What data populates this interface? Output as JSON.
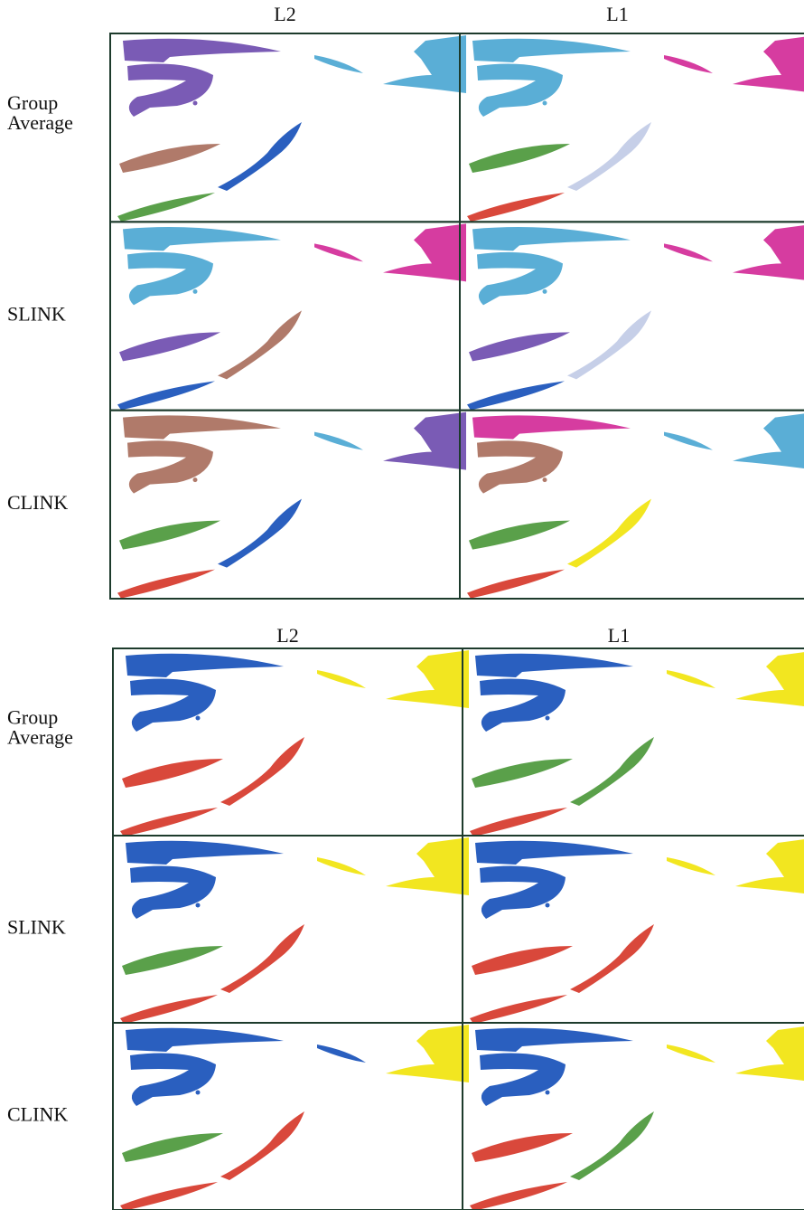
{
  "panels": [
    {
      "columns": [
        "L2",
        "L1"
      ],
      "rows": [
        [
          "Group",
          "Average"
        ],
        [
          "SLINK"
        ],
        [
          "CLINK"
        ]
      ]
    },
    {
      "columns": [
        "L2",
        "L1"
      ],
      "rows": [
        [
          "Group",
          "Average"
        ],
        [
          "SLINK"
        ],
        [
          "CLINK"
        ]
      ]
    }
  ]
}
